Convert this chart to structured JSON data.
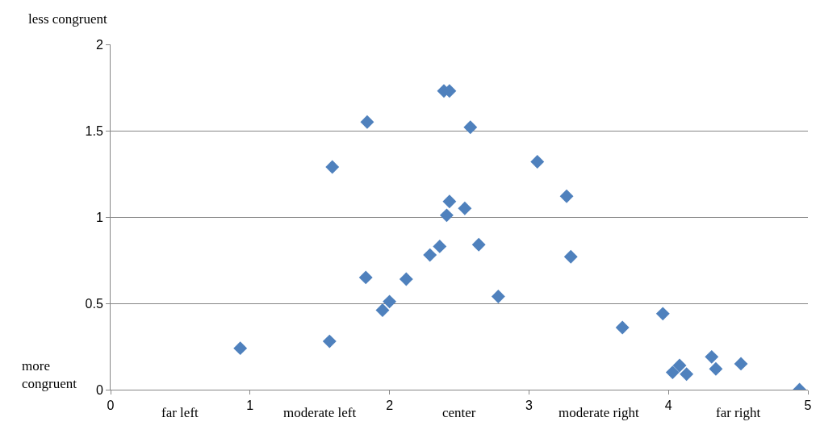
{
  "chart_data": {
    "type": "scatter",
    "marker": "diamond",
    "grid": "y",
    "x": [
      0.93,
      1.57,
      1.59,
      1.84,
      1.83,
      1.95,
      2.0,
      2.12,
      2.29,
      2.36,
      2.39,
      2.43,
      2.41,
      2.43,
      2.54,
      2.58,
      2.64,
      2.78,
      3.06,
      3.27,
      3.3,
      3.67,
      3.96,
      4.03,
      4.08,
      4.13,
      4.31,
      4.34,
      4.52,
      4.94
    ],
    "series": [
      {
        "color": "#4f81bd",
        "values": [
          0.24,
          0.28,
          1.29,
          1.55,
          0.65,
          0.46,
          0.51,
          0.64,
          0.78,
          0.83,
          1.73,
          1.73,
          1.01,
          1.09,
          1.05,
          1.52,
          0.84,
          0.54,
          1.32,
          1.12,
          0.77,
          0.36,
          0.44,
          0.1,
          0.14,
          0.09,
          0.19,
          0.12,
          0.15,
          0.0
        ]
      }
    ],
    "xlim": [
      0,
      5
    ],
    "xticks": [
      0,
      1,
      2,
      3,
      4,
      5
    ],
    "ylim": [
      0,
      2
    ],
    "yticks": [
      0,
      0.5,
      1,
      1.5,
      2
    ],
    "annotations": [
      "less congruent",
      "more congruent",
      "far left",
      "moderate left",
      "center",
      "moderate right",
      "far right"
    ]
  }
}
